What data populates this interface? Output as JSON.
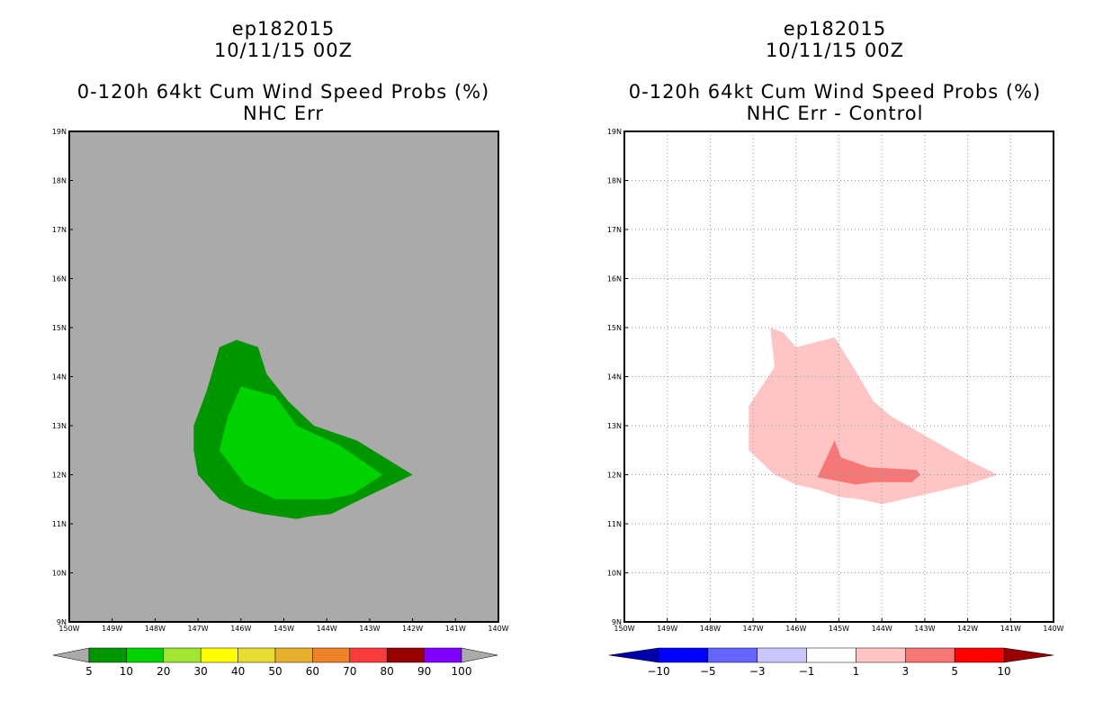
{
  "left": {
    "title_line1": "ep182015",
    "title_line2": "10/11/15 00Z",
    "title_line3": "0-120h 64kt Cum Wind Speed Probs (%)",
    "title_line4": "NHC Err"
  },
  "right": {
    "title_line1": "ep182015",
    "title_line2": "10/11/15 00Z",
    "title_line3": "0-120h 64kt Cum Wind Speed Probs (%)",
    "title_line4": "NHC Err - Control"
  },
  "colors": {
    "background_gray": "#aaaaaa",
    "prob_5_10": "#009600",
    "prob_10_20": "#00d200",
    "diff_1_3": "#ffc4c4",
    "diff_3_5": "#f77676"
  },
  "chart_data": [
    {
      "type": "heatmap",
      "panel": "left",
      "title": "0-120h 64kt Cum Wind Speed Probs (%) NHC Err",
      "x_axis": {
        "lon_range": [
          150,
          140
        ],
        "tick_labels": [
          "150W",
          "149W",
          "148W",
          "147W",
          "146W",
          "145W",
          "144W",
          "143W",
          "142W",
          "141W",
          "140W"
        ]
      },
      "y_axis": {
        "lat_range": [
          9,
          19
        ],
        "tick_labels": [
          "9N",
          "10N",
          "11N",
          "12N",
          "13N",
          "14N",
          "15N",
          "16N",
          "17N",
          "18N",
          "19N"
        ]
      },
      "grid": false,
      "contours": [
        {
          "level": "5-10",
          "color": "#009600",
          "polygon_lonlat": [
            [
              -146.5,
              14.6
            ],
            [
              -146.1,
              14.75
            ],
            [
              -145.6,
              14.6
            ],
            [
              -145.4,
              14.05
            ],
            [
              -144.9,
              13.5
            ],
            [
              -144.3,
              13.0
            ],
            [
              -143.3,
              12.7
            ],
            [
              -142.0,
              12.0
            ],
            [
              -143.2,
              11.5
            ],
            [
              -143.9,
              11.2
            ],
            [
              -144.4,
              11.15
            ],
            [
              -144.7,
              11.1
            ],
            [
              -145.5,
              11.2
            ],
            [
              -146.0,
              11.3
            ],
            [
              -146.5,
              11.5
            ],
            [
              -147.0,
              12.0
            ],
            [
              -147.1,
              12.5
            ],
            [
              -147.1,
              13.0
            ],
            [
              -146.8,
              13.7
            ]
          ]
        },
        {
          "level": "10-20",
          "color": "#00d200",
          "polygon_lonlat": [
            [
              -146.0,
              13.8
            ],
            [
              -145.2,
              13.6
            ],
            [
              -144.7,
              13.0
            ],
            [
              -143.7,
              12.6
            ],
            [
              -142.7,
              12.0
            ],
            [
              -143.4,
              11.6
            ],
            [
              -144.0,
              11.5
            ],
            [
              -144.4,
              11.5
            ],
            [
              -145.2,
              11.5
            ],
            [
              -145.9,
              11.8
            ],
            [
              -146.5,
              12.5
            ],
            [
              -146.3,
              13.2
            ]
          ]
        }
      ],
      "colorbar": {
        "labels": [
          "5",
          "10",
          "20",
          "30",
          "40",
          "50",
          "60",
          "70",
          "80",
          "90",
          "100"
        ],
        "colors": [
          "#009600",
          "#00d200",
          "#a0e632",
          "#ffff00",
          "#e6dc32",
          "#e6af2d",
          "#f08228",
          "#fa3c3c",
          "#960000",
          "#8000ff"
        ]
      }
    },
    {
      "type": "heatmap",
      "panel": "right",
      "title": "0-120h 64kt Cum Wind Speed Probs (%) NHC Err - Control",
      "x_axis": {
        "lon_range": [
          150,
          140
        ],
        "tick_labels": [
          "150W",
          "149W",
          "148W",
          "147W",
          "146W",
          "145W",
          "144W",
          "143W",
          "142W",
          "141W",
          "140W"
        ]
      },
      "y_axis": {
        "lat_range": [
          9,
          19
        ],
        "tick_labels": [
          "9N",
          "10N",
          "11N",
          "12N",
          "13N",
          "14N",
          "15N",
          "16N",
          "17N",
          "18N",
          "19N"
        ]
      },
      "grid": true,
      "contours": [
        {
          "level": "1-3",
          "color": "#ffc4c4",
          "polygon_lonlat": [
            [
              -146.6,
              15.0
            ],
            [
              -146.3,
              14.9
            ],
            [
              -146.0,
              14.6
            ],
            [
              -145.1,
              14.8
            ],
            [
              -144.6,
              14.1
            ],
            [
              -144.2,
              13.5
            ],
            [
              -143.8,
              13.2
            ],
            [
              -143.0,
              12.8
            ],
            [
              -142.0,
              12.3
            ],
            [
              -141.3,
              12.0
            ],
            [
              -142.0,
              11.8
            ],
            [
              -142.5,
              11.7
            ],
            [
              -143.5,
              11.5
            ],
            [
              -144.0,
              11.4
            ],
            [
              -144.5,
              11.5
            ],
            [
              -145.0,
              11.55
            ],
            [
              -145.5,
              11.7
            ],
            [
              -146.0,
              11.8
            ],
            [
              -146.5,
              12.0
            ],
            [
              -147.1,
              12.5
            ],
            [
              -147.1,
              13.4
            ],
            [
              -146.5,
              14.2
            ]
          ]
        },
        {
          "level": "3-5",
          "color": "#f77676",
          "polygon_lonlat": [
            [
              -145.1,
              12.7
            ],
            [
              -144.95,
              12.35
            ],
            [
              -144.3,
              12.15
            ],
            [
              -143.2,
              12.1
            ],
            [
              -143.1,
              12.0
            ],
            [
              -143.3,
              11.85
            ],
            [
              -144.2,
              11.85
            ],
            [
              -144.6,
              11.8
            ],
            [
              -145.5,
              11.95
            ]
          ]
        }
      ],
      "colorbar": {
        "labels": [
          "-10",
          "-5",
          "-3",
          "-1",
          "1",
          "3",
          "5",
          "10"
        ],
        "colors": [
          "#0000aa",
          "#0000ff",
          "#6464ff",
          "#c8c8ff",
          "#ffffff",
          "#ffc4c4",
          "#f77676",
          "#ff0000",
          "#960000"
        ]
      }
    }
  ]
}
